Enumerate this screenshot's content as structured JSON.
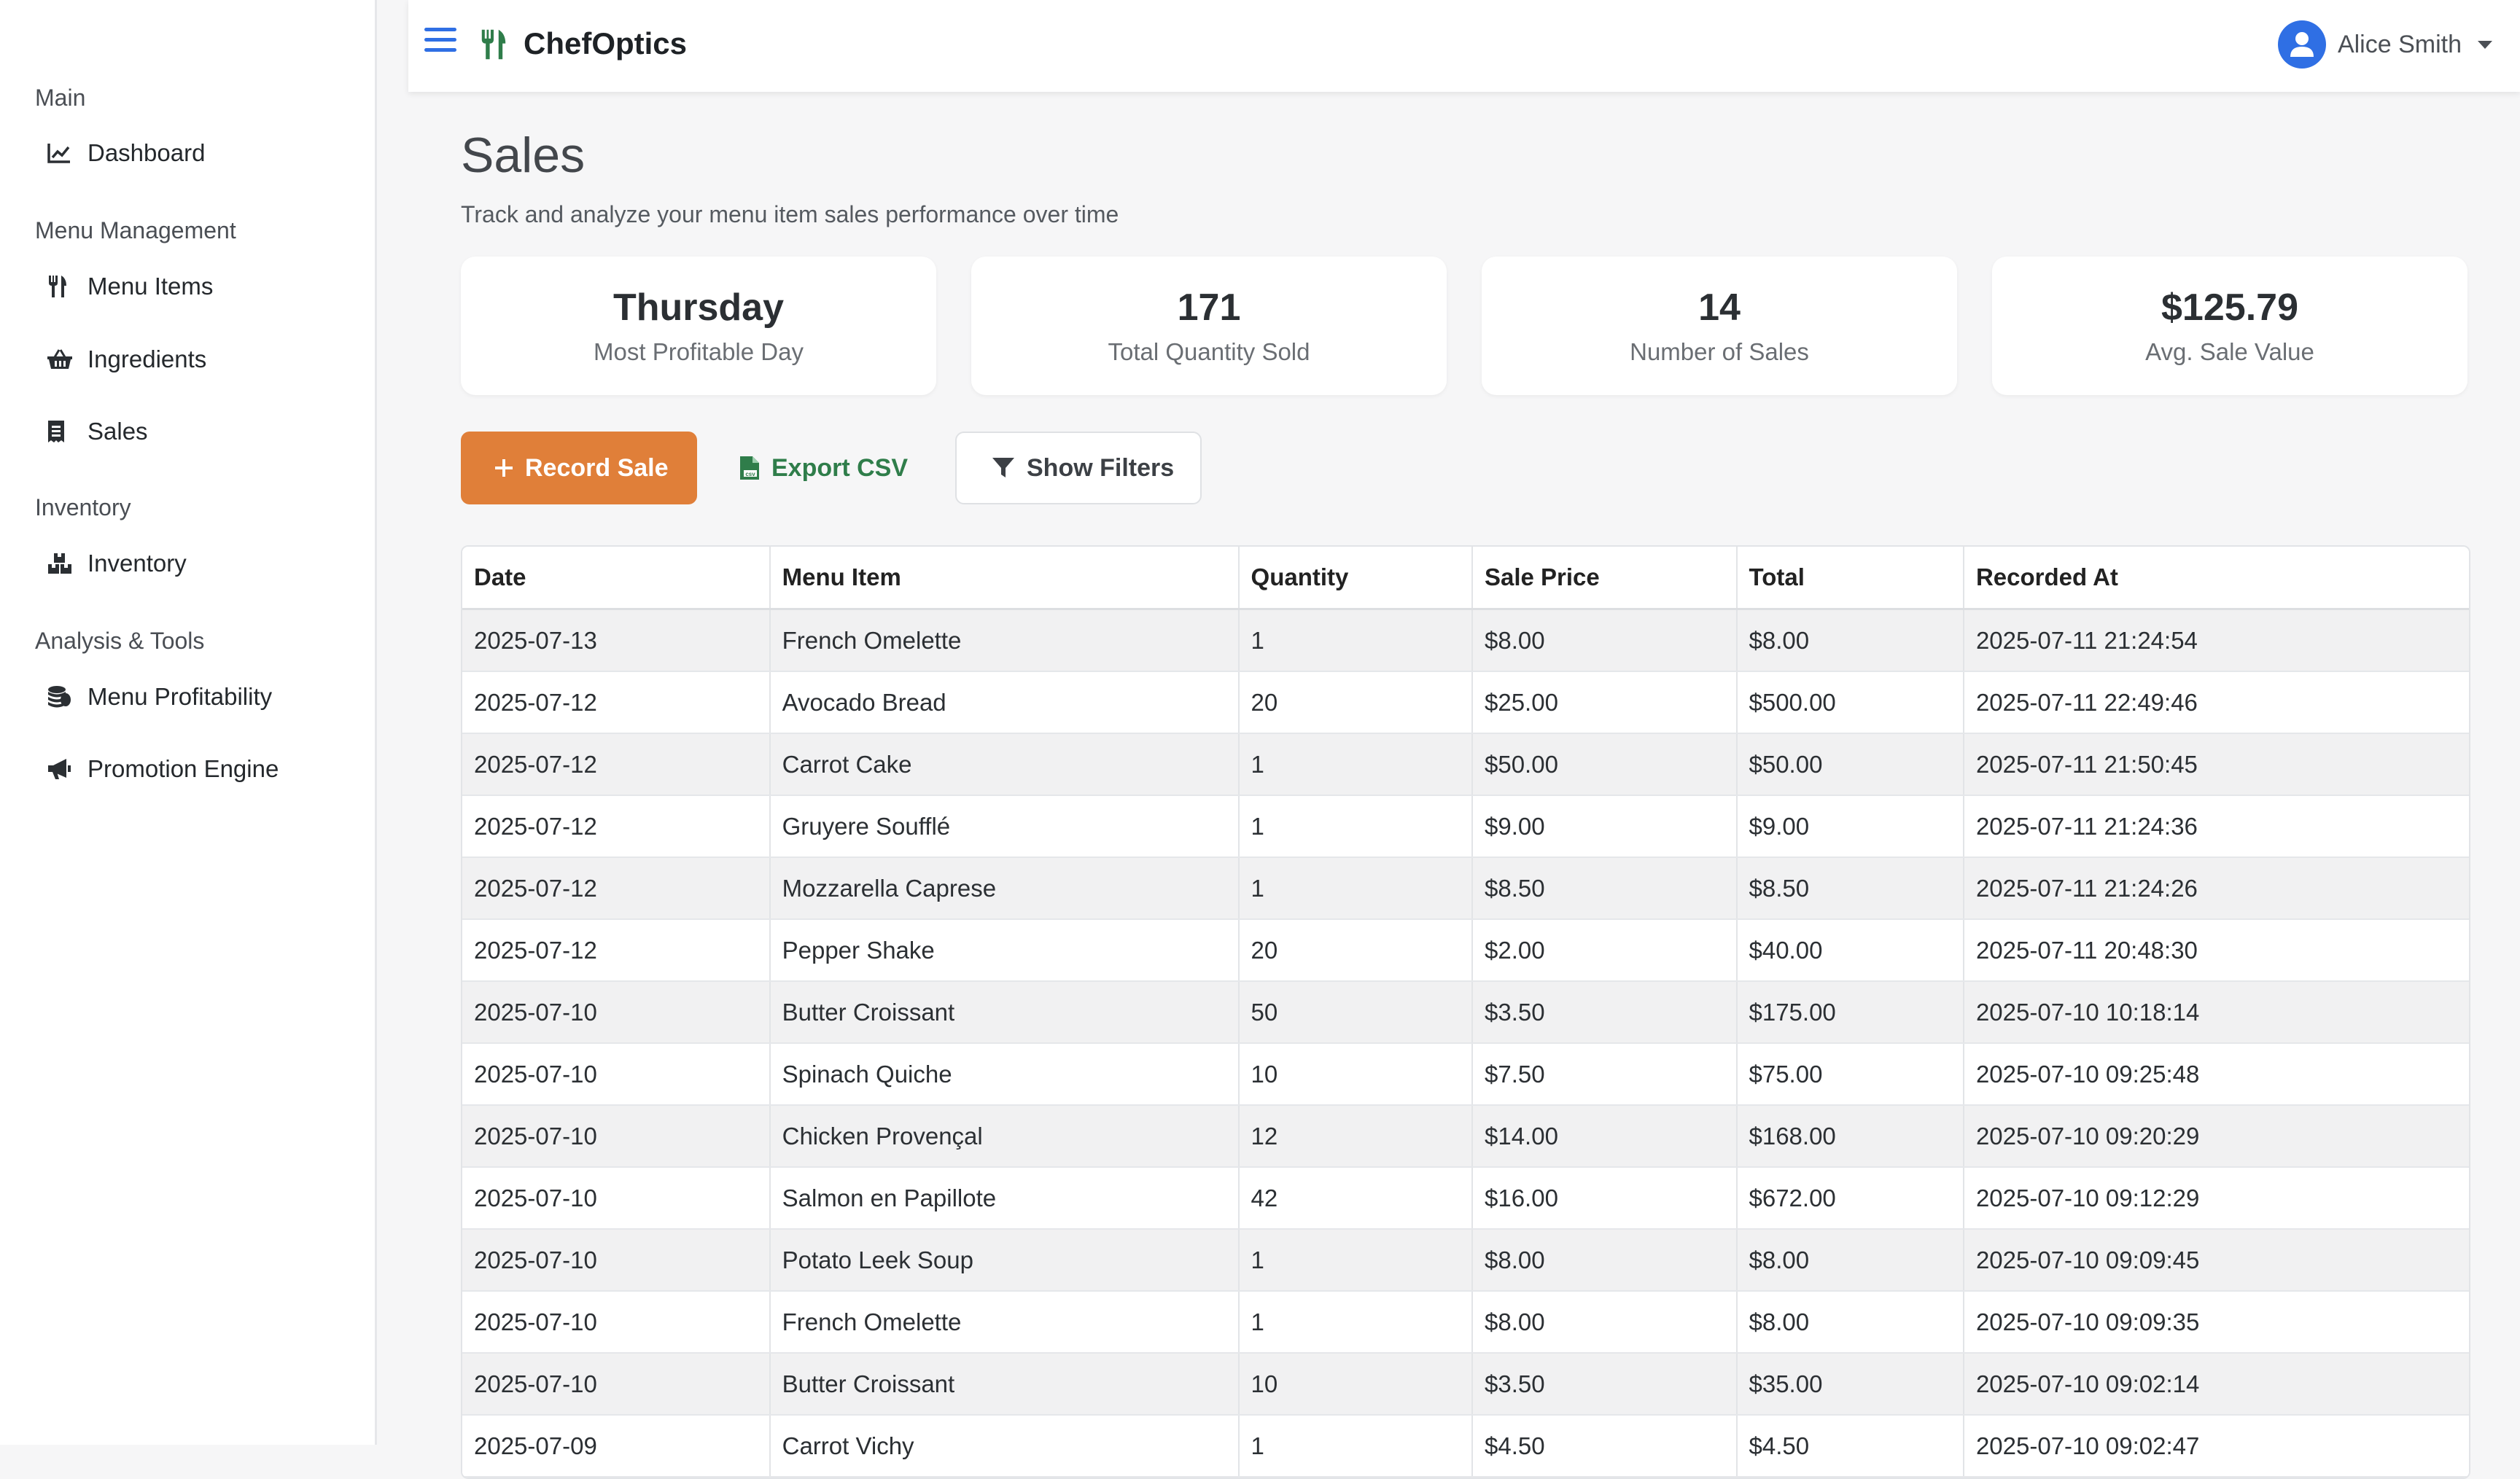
{
  "app": {
    "title": "ChefOptics"
  },
  "user": {
    "name": "Alice Smith"
  },
  "sidebar": {
    "sections": [
      {
        "title": "Main",
        "items": [
          {
            "label": "Dashboard",
            "icon": "chart-line-icon"
          }
        ]
      },
      {
        "title": "Menu Management",
        "items": [
          {
            "label": "Menu Items",
            "icon": "utensils-icon"
          },
          {
            "label": "Ingredients",
            "icon": "basket-icon"
          },
          {
            "label": "Sales",
            "icon": "receipt-icon"
          }
        ]
      },
      {
        "title": "Inventory",
        "items": [
          {
            "label": "Inventory",
            "icon": "boxes-icon"
          }
        ]
      },
      {
        "title": "Analysis & Tools",
        "items": [
          {
            "label": "Menu Profitability",
            "icon": "coins-icon"
          },
          {
            "label": "Promotion Engine",
            "icon": "megaphone-icon"
          }
        ]
      }
    ]
  },
  "page": {
    "title": "Sales",
    "subtitle": "Track and analyze your menu item sales performance over time"
  },
  "stats": [
    {
      "value": "Thursday",
      "label": "Most Profitable Day"
    },
    {
      "value": "171",
      "label": "Total Quantity Sold"
    },
    {
      "value": "14",
      "label": "Number of Sales"
    },
    {
      "value": "$125.79",
      "label": "Avg. Sale Value"
    }
  ],
  "actions": {
    "record_label": "Record Sale",
    "export_label": "Export CSV",
    "filters_label": "Show Filters"
  },
  "colors": {
    "accent": "#e07f39",
    "primary": "#2f6fe4",
    "export": "#2f7d4a"
  },
  "table": {
    "headers": [
      "Date",
      "Menu Item",
      "Quantity",
      "Sale Price",
      "Total",
      "Recorded At"
    ],
    "rows": [
      [
        "2025-07-13",
        "French Omelette",
        "1",
        "$8.00",
        "$8.00",
        "2025-07-11 21:24:54"
      ],
      [
        "2025-07-12",
        "Avocado Bread",
        "20",
        "$25.00",
        "$500.00",
        "2025-07-11 22:49:46"
      ],
      [
        "2025-07-12",
        "Carrot Cake",
        "1",
        "$50.00",
        "$50.00",
        "2025-07-11 21:50:45"
      ],
      [
        "2025-07-12",
        "Gruyere Soufflé",
        "1",
        "$9.00",
        "$9.00",
        "2025-07-11 21:24:36"
      ],
      [
        "2025-07-12",
        "Mozzarella Caprese",
        "1",
        "$8.50",
        "$8.50",
        "2025-07-11 21:24:26"
      ],
      [
        "2025-07-12",
        "Pepper Shake",
        "20",
        "$2.00",
        "$40.00",
        "2025-07-11 20:48:30"
      ],
      [
        "2025-07-10",
        "Butter Croissant",
        "50",
        "$3.50",
        "$175.00",
        "2025-07-10 10:18:14"
      ],
      [
        "2025-07-10",
        "Spinach Quiche",
        "10",
        "$7.50",
        "$75.00",
        "2025-07-10 09:25:48"
      ],
      [
        "2025-07-10",
        "Chicken Provençal",
        "12",
        "$14.00",
        "$168.00",
        "2025-07-10 09:20:29"
      ],
      [
        "2025-07-10",
        "Salmon en Papillote",
        "42",
        "$16.00",
        "$672.00",
        "2025-07-10 09:12:29"
      ],
      [
        "2025-07-10",
        "Potato Leek Soup",
        "1",
        "$8.00",
        "$8.00",
        "2025-07-10 09:09:45"
      ],
      [
        "2025-07-10",
        "French Omelette",
        "1",
        "$8.00",
        "$8.00",
        "2025-07-10 09:09:35"
      ],
      [
        "2025-07-10",
        "Butter Croissant",
        "10",
        "$3.50",
        "$35.00",
        "2025-07-10 09:02:14"
      ],
      [
        "2025-07-09",
        "Carrot Vichy",
        "1",
        "$4.50",
        "$4.50",
        "2025-07-10 09:02:47"
      ]
    ]
  }
}
